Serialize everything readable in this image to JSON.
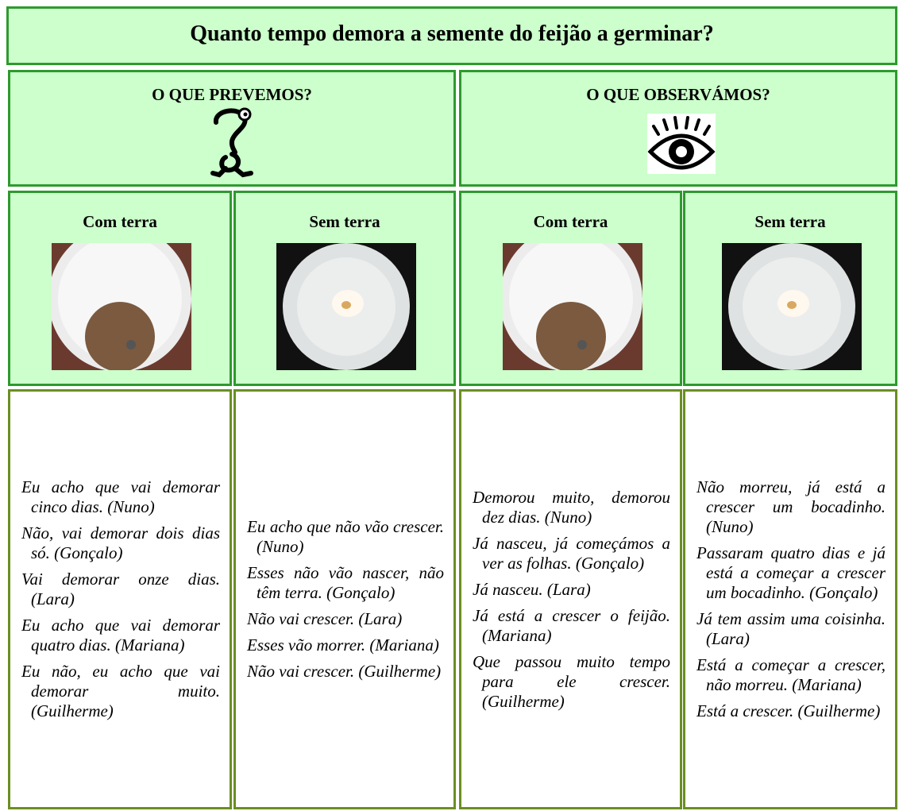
{
  "title": "Quanto tempo demora a semente do feijão a germinar?",
  "sections": [
    {
      "heading": "O QUE PREVEMOS?",
      "columns": [
        {
          "heading": "Com terra",
          "quotes": [
            "Eu acho que vai demorar cinco dias. (Nuno)",
            "Não, vai demorar dois dias só. (Gonçalo)",
            "Vai demorar onze dias. (Lara)",
            "Eu acho que vai demorar quatro dias. (Mariana)",
            "Eu não, eu acho que vai demorar muito. (Guilherme)"
          ]
        },
        {
          "heading": "Sem terra",
          "quotes": [
            "Eu acho que não vão crescer. (Nuno)",
            "Esses não vão nascer, não têm terra. (Gonçalo)",
            "Não vai crescer. (Lara)",
            "Esses vão morrer. (Mariana)",
            "Não vai crescer. (Guilherme)"
          ]
        }
      ]
    },
    {
      "heading": "O QUE OBSERVÁMOS?",
      "columns": [
        {
          "heading": "Com terra",
          "quotes": [
            "Demorou muito, demorou dez dias. (Nuno)",
            "Já nasceu, já começámos a ver as folhas. (Gonçalo)",
            "Já nasceu. (Lara)",
            "Já está a crescer o feijão. (Mariana)",
            "Que passou muito tempo para ele crescer. (Guilherme)"
          ]
        },
        {
          "heading": "Sem terra",
          "quotes": [
            "Não morreu, já está a crescer um bocadinho. (Nuno)",
            "Passaram quatro dias e já está a começar a crescer um bocadinho. (Gonçalo)",
            "Já tem assim uma coisinha. (Lara)",
            "Está a começar a crescer, não morreu. (Mariana)",
            "Está a crescer. (Guilherme)"
          ]
        }
      ]
    }
  ]
}
